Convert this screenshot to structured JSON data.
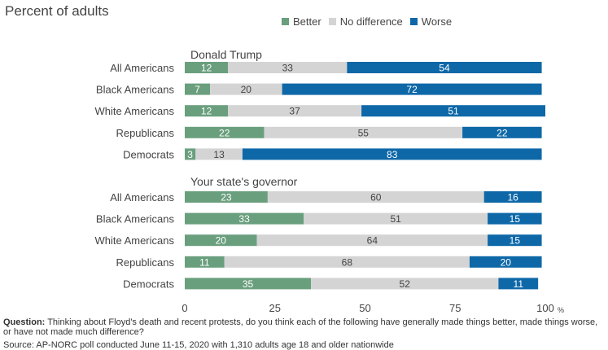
{
  "header": {
    "subtitle": "Percent of adults"
  },
  "legend": [
    {
      "label": "Better",
      "color": "#6a9f7e"
    },
    {
      "label": "No difference",
      "color": "#d4d4d4"
    },
    {
      "label": "Worse",
      "color": "#0e68a8"
    }
  ],
  "chart_data": {
    "type": "bar",
    "orientation": "horizontal",
    "stacked": true,
    "xlim": [
      0,
      100
    ],
    "xticks": [
      "0",
      "25",
      "50",
      "75",
      "100"
    ],
    "x_unit": "%",
    "groups": [
      {
        "name": "Donald Trump",
        "categories": [
          "All Americans",
          "Black Americans",
          "White Americans",
          "Republicans",
          "Democrats"
        ],
        "series": [
          {
            "name": "Better",
            "values": [
              12,
              7,
              12,
              22,
              3
            ]
          },
          {
            "name": "No difference",
            "values": [
              33,
              20,
              37,
              55,
              13
            ]
          },
          {
            "name": "Worse",
            "values": [
              54,
              72,
              51,
              22,
              83
            ]
          }
        ]
      },
      {
        "name": "Your state's governor",
        "categories": [
          "All Americans",
          "Black Americans",
          "White Americans",
          "Republicans",
          "Democrats"
        ],
        "series": [
          {
            "name": "Better",
            "values": [
              23,
              33,
              20,
              11,
              35
            ]
          },
          {
            "name": "No difference",
            "values": [
              60,
              51,
              64,
              68,
              52
            ]
          },
          {
            "name": "Worse",
            "values": [
              16,
              15,
              15,
              20,
              11
            ]
          }
        ]
      }
    ]
  },
  "footnote": {
    "question_label": "Question:",
    "question_text": " Thinking about Floyd's death and recent protests, do you think each of the following have generally made things better, made things worse, or have not made much difference?",
    "source_text": "Source: AP-NORC poll conducted June 11-15, 2020 with 1,310 adults age 18 and older nationwide"
  }
}
